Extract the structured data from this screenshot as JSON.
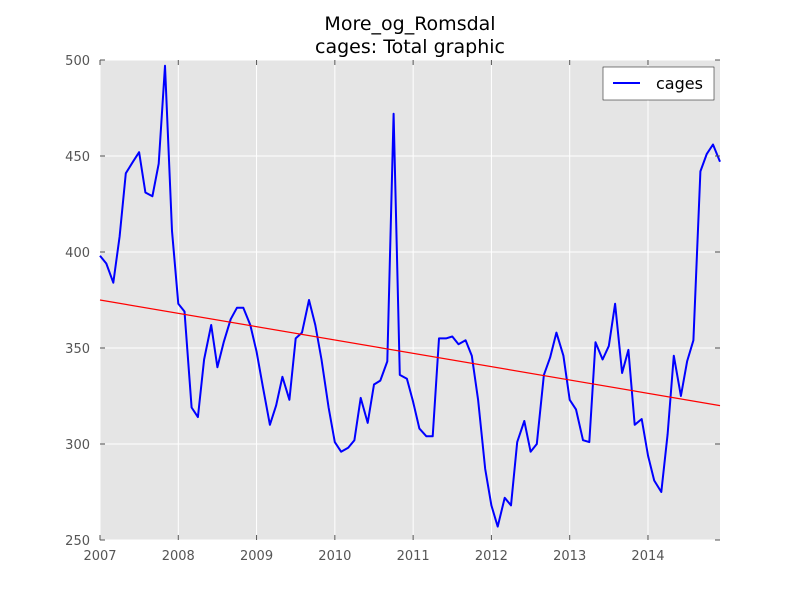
{
  "chart_data": {
    "type": "line",
    "title": "More_og_Romsdal",
    "subtitle": "cages: Total graphic",
    "xlabel": "",
    "ylabel": "",
    "xlim": [
      2007.0,
      2014.92
    ],
    "ylim": [
      250,
      500
    ],
    "x_ticks": [
      2007,
      2008,
      2009,
      2010,
      2011,
      2012,
      2013,
      2014
    ],
    "y_ticks": [
      250,
      300,
      350,
      400,
      450,
      500
    ],
    "grid": true,
    "legend_position": "top-right",
    "series": [
      {
        "name": "cages",
        "color": "#0000ff",
        "x": [
          2007.0,
          2007.08,
          2007.17,
          2007.25,
          2007.33,
          2007.42,
          2007.5,
          2007.58,
          2007.67,
          2007.75,
          2007.83,
          2007.92,
          2008.0,
          2008.08,
          2008.17,
          2008.25,
          2008.33,
          2008.42,
          2008.5,
          2008.58,
          2008.67,
          2008.75,
          2008.83,
          2008.92,
          2009.0,
          2009.08,
          2009.17,
          2009.25,
          2009.33,
          2009.42,
          2009.5,
          2009.58,
          2009.67,
          2009.75,
          2009.83,
          2009.92,
          2010.0,
          2010.08,
          2010.17,
          2010.25,
          2010.33,
          2010.42,
          2010.5,
          2010.58,
          2010.67,
          2010.75,
          2010.83,
          2010.92,
          2011.0,
          2011.08,
          2011.17,
          2011.25,
          2011.33,
          2011.42,
          2011.5,
          2011.58,
          2011.67,
          2011.75,
          2011.83,
          2011.92,
          2012.0,
          2012.08,
          2012.17,
          2012.25,
          2012.33,
          2012.42,
          2012.5,
          2012.58,
          2012.67,
          2012.75,
          2012.83,
          2012.92,
          2013.0,
          2013.08,
          2013.17,
          2013.25,
          2013.33,
          2013.42,
          2013.5,
          2013.58,
          2013.67,
          2013.75,
          2013.83,
          2013.92,
          2014.0,
          2014.08,
          2014.17,
          2014.25,
          2014.33,
          2014.42,
          2014.5,
          2014.58,
          2014.67,
          2014.75,
          2014.83,
          2014.92
        ],
        "values": [
          398,
          394,
          384,
          408,
          441,
          447,
          452,
          431,
          429,
          446,
          497,
          411,
          373,
          369,
          319,
          314,
          344,
          362,
          340,
          353,
          365,
          371,
          371,
          362,
          348,
          330,
          310,
          320,
          335,
          323,
          355,
          358,
          375,
          362,
          344,
          319,
          301,
          296,
          298,
          302,
          324,
          311,
          331,
          333,
          343,
          472,
          336,
          334,
          322,
          308,
          304,
          304,
          355,
          355,
          356,
          352,
          354,
          346,
          323,
          287,
          268,
          257,
          272,
          268,
          301,
          312,
          296,
          300,
          336,
          345,
          358,
          346,
          323,
          318,
          302,
          301,
          353,
          344,
          351,
          373,
          337,
          349,
          310,
          313,
          294,
          281,
          275,
          305,
          346,
          325,
          343,
          354,
          442,
          451,
          456,
          447
        ]
      },
      {
        "name": "",
        "color": "#ff0000",
        "x": [
          2007.0,
          2014.92
        ],
        "values": [
          375,
          320
        ]
      }
    ]
  }
}
